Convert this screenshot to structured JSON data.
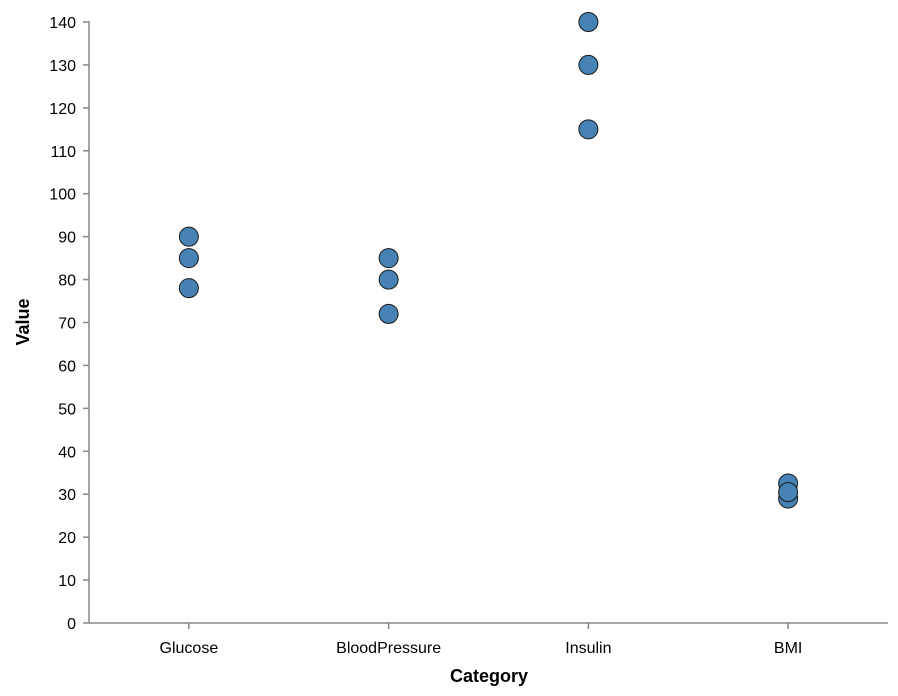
{
  "chart_data": {
    "type": "scatter",
    "title": "",
    "xlabel": "Category",
    "ylabel": "Value",
    "categories": [
      "Glucose",
      "BloodPressure",
      "Insulin",
      "BMI"
    ],
    "ylim": [
      0,
      140
    ],
    "yticks": [
      0,
      10,
      20,
      30,
      40,
      50,
      60,
      70,
      80,
      90,
      100,
      110,
      120,
      130,
      140
    ],
    "grid": false,
    "point_color": "#4682b4",
    "points": [
      {
        "category": "Glucose",
        "value": 90
      },
      {
        "category": "Glucose",
        "value": 85
      },
      {
        "category": "Glucose",
        "value": 78
      },
      {
        "category": "BloodPressure",
        "value": 85
      },
      {
        "category": "BloodPressure",
        "value": 80
      },
      {
        "category": "BloodPressure",
        "value": 72
      },
      {
        "category": "Insulin",
        "value": 140
      },
      {
        "category": "Insulin",
        "value": 130
      },
      {
        "category": "Insulin",
        "value": 115
      },
      {
        "category": "BMI",
        "value": 32.5
      },
      {
        "category": "BMI",
        "value": 29
      },
      {
        "category": "BMI",
        "value": 30.5
      }
    ]
  }
}
